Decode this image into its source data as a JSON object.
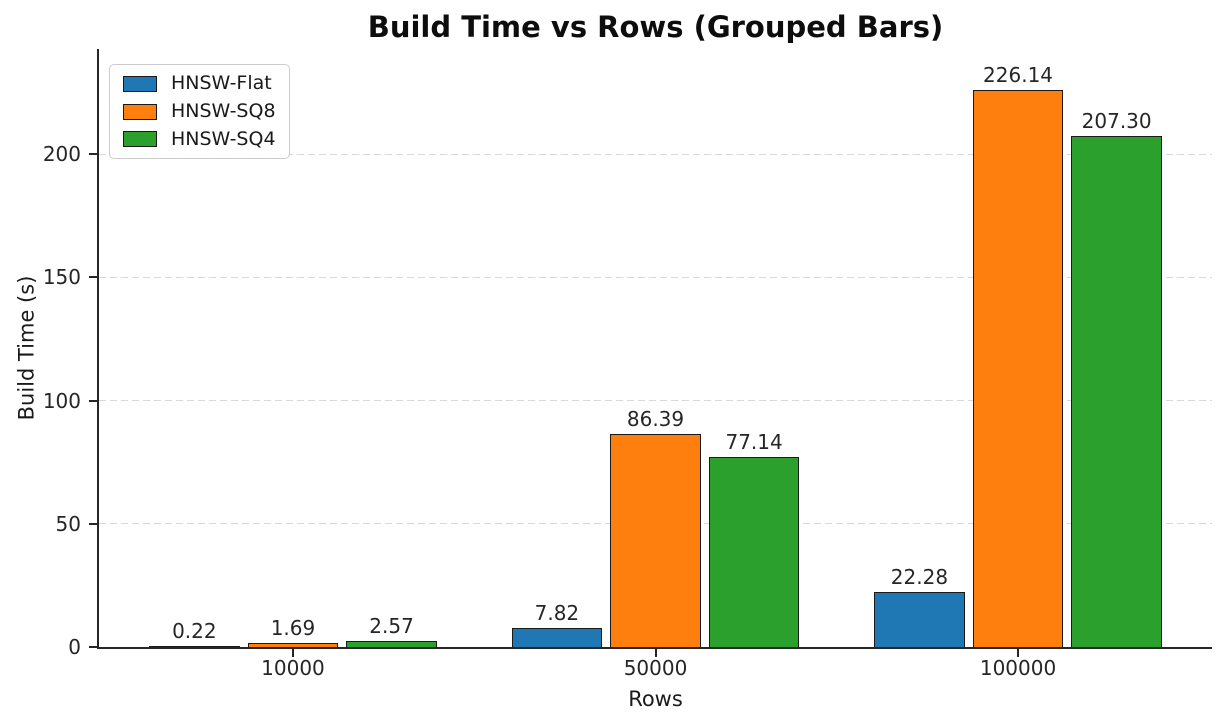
{
  "chart_data": {
    "type": "bar",
    "title": "Build Time vs Rows (Grouped Bars)",
    "xlabel": "Rows",
    "ylabel": "Build Time (s)",
    "categories": [
      "10000",
      "50000",
      "100000"
    ],
    "series": [
      {
        "name": "HNSW-Flat",
        "color": "#1f77b4",
        "values": [
          0.22,
          7.82,
          22.28
        ]
      },
      {
        "name": "HNSW-SQ8",
        "color": "#ff7f0e",
        "values": [
          1.69,
          86.39,
          226.14
        ]
      },
      {
        "name": "HNSW-SQ4",
        "color": "#2ca02c",
        "values": [
          2.57,
          77.14,
          207.3
        ]
      }
    ],
    "value_label_decimals": 2,
    "yticks": [
      0,
      50,
      100,
      150,
      200
    ],
    "ylim": [
      0,
      242.6
    ],
    "xlim": [
      -0.535,
      2.535
    ],
    "bar_width": 0.25,
    "bar_offsets": [
      -0.272,
      0,
      0.272
    ],
    "grid": "horizontal-dashed",
    "legend_position": "upper-left",
    "colors": {
      "bar_edge": "#1a1a1a",
      "grid": "#d8d8d8",
      "axis": "#262626",
      "text": "#262626"
    }
  }
}
